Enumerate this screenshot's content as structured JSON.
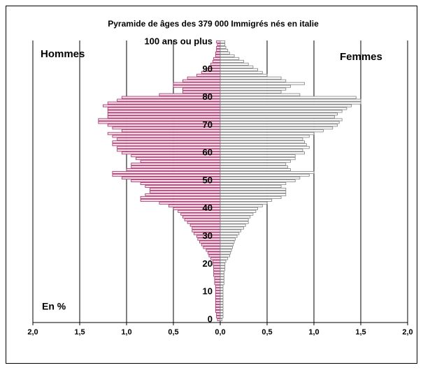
{
  "chart_data": {
    "type": "pyramid",
    "title": "Pyramide de âges des 379 000 Immigrés nés en italie",
    "annotation": "En %",
    "categories": [
      0,
      null,
      null,
      null,
      null,
      null,
      null,
      null,
      null,
      null,
      10,
      null,
      null,
      null,
      null,
      null,
      null,
      null,
      null,
      null,
      20,
      null,
      null,
      null,
      null,
      null,
      null,
      null,
      null,
      null,
      30,
      null,
      null,
      null,
      null,
      null,
      null,
      null,
      null,
      null,
      40,
      null,
      null,
      null,
      null,
      null,
      null,
      null,
      null,
      null,
      50,
      null,
      null,
      null,
      null,
      null,
      null,
      null,
      null,
      null,
      60,
      null,
      null,
      null,
      null,
      null,
      null,
      null,
      null,
      null,
      70,
      null,
      null,
      null,
      null,
      null,
      null,
      null,
      null,
      null,
      80,
      null,
      null,
      null,
      null,
      null,
      null,
      null,
      null,
      null,
      90,
      null,
      null,
      null,
      null,
      null,
      null,
      null,
      null,
      null,
      "100 ans ou plus"
    ],
    "series": [
      {
        "name": "Hommes",
        "color": "#a0306a",
        "side": "left",
        "values": [
          0.03,
          0.04,
          0.04,
          0.05,
          0.05,
          0.05,
          0.05,
          0.05,
          0.05,
          0.05,
          0.05,
          0.05,
          0.05,
          0.06,
          0.06,
          0.06,
          0.07,
          0.07,
          0.07,
          0.07,
          0.08,
          0.08,
          0.1,
          0.12,
          0.13,
          0.15,
          0.18,
          0.2,
          0.22,
          0.24,
          0.25,
          0.28,
          0.3,
          0.3,
          0.32,
          0.35,
          0.38,
          0.4,
          0.42,
          0.45,
          0.5,
          0.55,
          0.65,
          0.85,
          0.85,
          0.8,
          0.75,
          0.75,
          0.8,
          0.85,
          0.95,
          1.05,
          1.15,
          1.15,
          1.0,
          0.95,
          0.95,
          0.85,
          0.9,
          0.95,
          1.05,
          1.1,
          1.1,
          1.15,
          1.15,
          1.1,
          1.15,
          1.2,
          1.05,
          1.15,
          1.2,
          1.3,
          1.3,
          1.2,
          1.2,
          1.2,
          1.2,
          1.25,
          1.2,
          1.1,
          1.05,
          0.65,
          0.4,
          0.4,
          0.5,
          0.5,
          0.4,
          0.35,
          0.25,
          0.2,
          0.15,
          0.12,
          0.1,
          0.08,
          0.07,
          0.05,
          0.05,
          0.04,
          0.04,
          0.03,
          0.04
        ]
      },
      {
        "name": "Femmes",
        "color": "#808080",
        "side": "right",
        "values": [
          0.02,
          0.03,
          0.03,
          0.03,
          0.03,
          0.03,
          0.03,
          0.03,
          0.03,
          0.03,
          0.03,
          0.03,
          0.03,
          0.04,
          0.04,
          0.04,
          0.04,
          0.04,
          0.05,
          0.05,
          0.05,
          0.06,
          0.08,
          0.1,
          0.11,
          0.12,
          0.13,
          0.14,
          0.15,
          0.16,
          0.18,
          0.2,
          0.22,
          0.25,
          0.27,
          0.3,
          0.3,
          0.32,
          0.35,
          0.38,
          0.4,
          0.45,
          0.5,
          0.55,
          0.65,
          0.7,
          0.7,
          0.7,
          0.65,
          0.7,
          0.8,
          0.85,
          0.95,
          1.0,
          0.75,
          0.72,
          0.7,
          0.75,
          0.8,
          0.8,
          0.9,
          0.88,
          0.95,
          0.92,
          0.9,
          0.88,
          0.95,
          1.0,
          1.1,
          1.2,
          1.25,
          1.27,
          1.3,
          1.22,
          1.25,
          1.3,
          1.35,
          1.4,
          1.5,
          1.5,
          1.45,
          0.85,
          0.65,
          0.7,
          0.75,
          0.9,
          0.7,
          0.65,
          0.5,
          0.45,
          0.4,
          0.35,
          0.3,
          0.25,
          0.2,
          0.15,
          0.1,
          0.08,
          0.06,
          0.05,
          0.05
        ]
      }
    ],
    "xlim": [
      -2,
      2
    ],
    "xticks": [
      {
        "value": -2,
        "label": "2,0"
      },
      {
        "value": -1.5,
        "label": "1,5"
      },
      {
        "value": -1,
        "label": "1,0"
      },
      {
        "value": -0.5,
        "label": "0,5"
      },
      {
        "value": 0,
        "label": "0,0"
      },
      {
        "value": 0.5,
        "label": "0,5"
      },
      {
        "value": 1,
        "label": "1,0"
      },
      {
        "value": 1.5,
        "label": "1,5"
      },
      {
        "value": 2,
        "label": "2,0"
      }
    ],
    "grid": true
  }
}
